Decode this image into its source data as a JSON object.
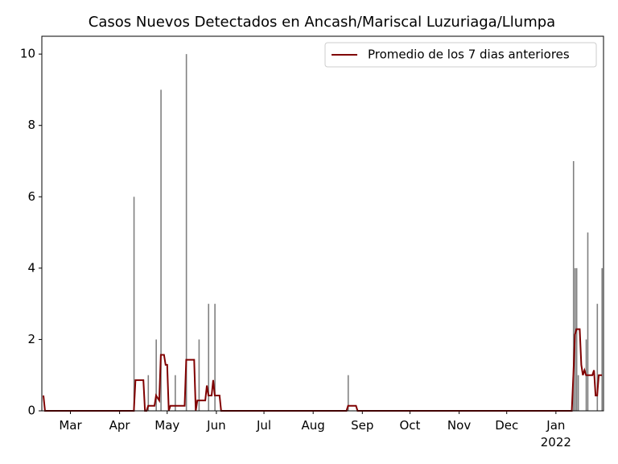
{
  "chart_data": {
    "type": "bar",
    "title": "Casos Nuevos Detectados en Ancash/Mariscal Luzuriaga/Llumpa",
    "xlim": [
      -18,
      336
    ],
    "xticks": [
      {
        "value": 0,
        "label": "Mar"
      },
      {
        "value": 31,
        "label": "Apr"
      },
      {
        "value": 61,
        "label": "May"
      },
      {
        "value": 92,
        "label": "Jun"
      },
      {
        "value": 122,
        "label": "Jul"
      },
      {
        "value": 153,
        "label": "Aug"
      },
      {
        "value": 184,
        "label": "Sep"
      },
      {
        "value": 214,
        "label": "Oct"
      },
      {
        "value": 245,
        "label": "Nov"
      },
      {
        "value": 275,
        "label": "Dec"
      },
      {
        "value": 306,
        "label": "Jan\n2022"
      }
    ],
    "ylim": [
      0,
      10.5
    ],
    "yticks": [
      0,
      2,
      4,
      6,
      8,
      10
    ],
    "legend": "upper right",
    "bars": {
      "color": "#808080",
      "x": [
        40,
        49,
        54,
        57,
        66,
        73,
        81,
        87,
        91,
        175,
        317,
        318,
        319,
        320,
        325,
        326,
        332,
        335
      ],
      "values": [
        6,
        1,
        2,
        9,
        1,
        10,
        2,
        3,
        3,
        1,
        7,
        4,
        4,
        1,
        2,
        5,
        3,
        4
      ]
    },
    "line": {
      "name": "Promedio de los 7 dias anteriores",
      "color": "#800000",
      "x": [
        -17,
        -16,
        40,
        41,
        46,
        47,
        48,
        49,
        53,
        54,
        56,
        57,
        59,
        60,
        61,
        62,
        63,
        72,
        73,
        78,
        79,
        80,
        85,
        86,
        87,
        89,
        90,
        91,
        94,
        95,
        174,
        175,
        180,
        181,
        316,
        317,
        318,
        319,
        321,
        322,
        323,
        324,
        325,
        329,
        330,
        331,
        332,
        333,
        335
      ],
      "values": [
        0.43,
        0,
        0,
        0.86,
        0.86,
        0,
        0,
        0.14,
        0.14,
        0.43,
        0.29,
        1.57,
        1.57,
        1.29,
        1.29,
        0,
        0.14,
        0.14,
        1.43,
        1.43,
        0,
        0.29,
        0.29,
        0.71,
        0.43,
        0.43,
        0.86,
        0.43,
        0.43,
        0,
        0,
        0.14,
        0.14,
        0,
        0,
        1.0,
        2.14,
        2.29,
        2.29,
        1.29,
        1.0,
        1.14,
        1.0,
        1.0,
        1.14,
        0.43,
        0.43,
        1.0,
        1.0
      ]
    }
  }
}
